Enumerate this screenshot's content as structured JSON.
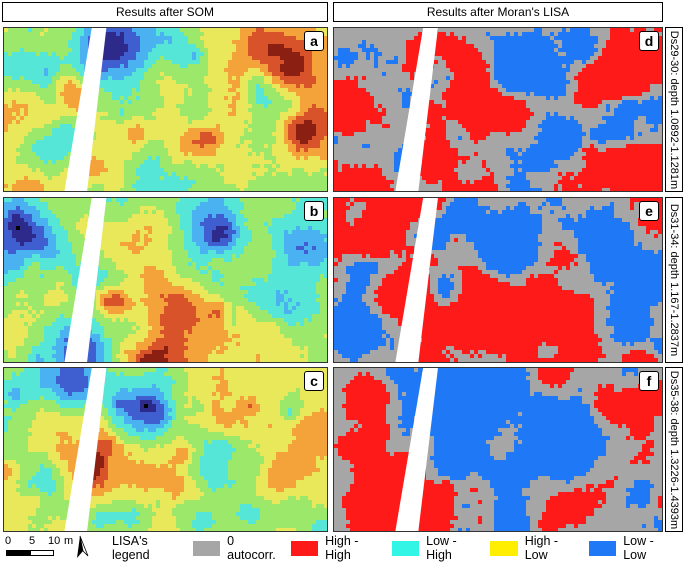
{
  "headers": {
    "left": "Results after SOM",
    "right": "Results after Moran's LISA"
  },
  "panels": [
    {
      "letter": "a",
      "type": "som",
      "seed": 11
    },
    {
      "letter": "d",
      "type": "lisa",
      "seed": 21
    },
    {
      "letter": "b",
      "type": "som",
      "seed": 37
    },
    {
      "letter": "e",
      "type": "lisa",
      "seed": 43
    },
    {
      "letter": "c",
      "type": "som",
      "seed": 59
    },
    {
      "letter": "f",
      "type": "lisa",
      "seed": 61
    }
  ],
  "side_labels": [
    "Ds29-30: depth 1.0892-1.1281m",
    "Ds31-34: depth 1.167-1.2837m",
    "Ds35-38: depth 1.3226-1.4393m"
  ],
  "scale": {
    "zero": "0",
    "mid": "5",
    "max": "10",
    "unit": "m"
  },
  "legend": {
    "title": "LISA's legend",
    "items": [
      {
        "label": "0 autocorr.",
        "color": "#a6a6a6"
      },
      {
        "label": "High - High",
        "color": "#ff1a1a"
      },
      {
        "label": "Low - High",
        "color": "#33f5e6"
      },
      {
        "label": "High - Low",
        "color": "#ffee00"
      },
      {
        "label": "Low - Low",
        "color": "#1f78f5"
      }
    ]
  },
  "colors": {
    "som_ramp": [
      "#2d2a8c",
      "#3f5fd0",
      "#4ab2f0",
      "#55e6d8",
      "#9be86a",
      "#e8e85a",
      "#f4a23a",
      "#d8532a",
      "#8a1f12"
    ],
    "lisa_zero": "#a6a6a6",
    "lisa_hh": "#ff1a1a",
    "lisa_ll": "#1f78f5"
  },
  "icons": {
    "north_arrow": "north-arrow-icon"
  }
}
